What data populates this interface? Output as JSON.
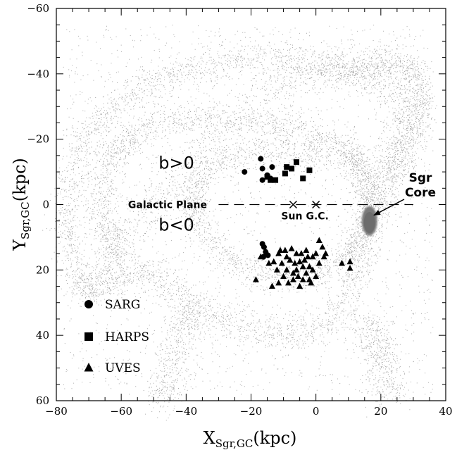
{
  "chart_data": {
    "type": "scatter",
    "title": "",
    "xlabel": {
      "main": "X",
      "sub": "Sgr,GC",
      "unit": "(kpc)"
    },
    "ylabel": {
      "main": "Y",
      "sub": "Sgr,GC",
      "unit": "(kpc)"
    },
    "xlim": [
      -80,
      40
    ],
    "ylim": [
      -60,
      60
    ],
    "y_inverted": true,
    "xticks": [
      -80,
      -60,
      -40,
      -20,
      0,
      20,
      40
    ],
    "yticks": [
      -60,
      -40,
      -20,
      0,
      20,
      40,
      60
    ],
    "xtick_labels": [
      "−80",
      "−60",
      "−40",
      "−20",
      "0",
      "20",
      "40"
    ],
    "ytick_labels": [
      "−60",
      "−40",
      "−20",
      "0",
      "20",
      "40",
      "60"
    ],
    "grid": false,
    "legend_position": "bottom-left",
    "background": {
      "name": "Sgr stream model particles",
      "color": "#9a9a9a"
    },
    "galactic_plane": {
      "label": "Galactic Plane",
      "y": 0,
      "x_range": [
        -30,
        30
      ],
      "style": "dashed"
    },
    "annotations": [
      {
        "text": "b>0",
        "x": -43,
        "y": -11
      },
      {
        "text": "b<0",
        "x": -43,
        "y": 8
      }
    ],
    "markers": [
      {
        "label": "Sun",
        "x": -7,
        "y": 0
      },
      {
        "label": "G.C.",
        "x": 0,
        "y": 0
      }
    ],
    "core": {
      "label_line1": "Sgr",
      "label_line2": "Core",
      "x": 16.5,
      "y": 5
    },
    "series": [
      {
        "name": "SARG",
        "marker": "circle",
        "points": [
          [
            -22,
            -10
          ],
          [
            -17,
            -14
          ],
          [
            -16.5,
            -11
          ],
          [
            -15,
            -9
          ],
          [
            -13.5,
            -11.5
          ],
          [
            -16.5,
            -7.5
          ],
          [
            -14,
            -8
          ],
          [
            -16.5,
            12
          ],
          [
            -16,
            13
          ],
          [
            -15.5,
            14.5
          ],
          [
            -14.8,
            15.5
          ],
          [
            -16.2,
            16
          ]
        ]
      },
      {
        "name": "HARPS",
        "marker": "square",
        "points": [
          [
            -15,
            -8.5
          ],
          [
            -14,
            -7.5
          ],
          [
            -12.5,
            -7.5
          ],
          [
            -9.5,
            -9.5
          ],
          [
            -9,
            -11.5
          ],
          [
            -7.5,
            -11
          ],
          [
            -6,
            -13
          ],
          [
            -2,
            -10.5
          ],
          [
            -4,
            -8
          ]
        ]
      },
      {
        "name": "UVES",
        "marker": "triangle",
        "points": [
          [
            -18.5,
            23
          ],
          [
            -17,
            16
          ],
          [
            -15,
            15
          ],
          [
            -14.5,
            18
          ],
          [
            -13,
            17.5
          ],
          [
            -12,
            20
          ],
          [
            -11.5,
            15
          ],
          [
            -11,
            14
          ],
          [
            -10.5,
            18
          ],
          [
            -10,
            22
          ],
          [
            -9.5,
            14
          ],
          [
            -9,
            16
          ],
          [
            -9,
            20
          ],
          [
            -8.5,
            24
          ],
          [
            -8,
            17
          ],
          [
            -7.5,
            13.5
          ],
          [
            -7,
            21
          ],
          [
            -7,
            23
          ],
          [
            -6.5,
            18
          ],
          [
            -6,
            15
          ],
          [
            -6,
            20
          ],
          [
            -5.5,
            22
          ],
          [
            -5,
            17.5
          ],
          [
            -5,
            25
          ],
          [
            -4.5,
            15
          ],
          [
            -4,
            19
          ],
          [
            -4,
            23
          ],
          [
            -3.5,
            17
          ],
          [
            -3,
            14
          ],
          [
            -3,
            21
          ],
          [
            -2.5,
            16
          ],
          [
            -2,
            19
          ],
          [
            -2,
            23
          ],
          [
            -1.5,
            24
          ],
          [
            -1,
            16
          ],
          [
            -1,
            20
          ],
          [
            0,
            15
          ],
          [
            0,
            22
          ],
          [
            1,
            11
          ],
          [
            1,
            18
          ],
          [
            2,
            13
          ],
          [
            2.5,
            16
          ],
          [
            3,
            15
          ],
          [
            8,
            18
          ],
          [
            10.5,
            19.5
          ],
          [
            10.5,
            17.5
          ],
          [
            -13.5,
            25
          ],
          [
            -11.5,
            24
          ]
        ]
      }
    ]
  }
}
